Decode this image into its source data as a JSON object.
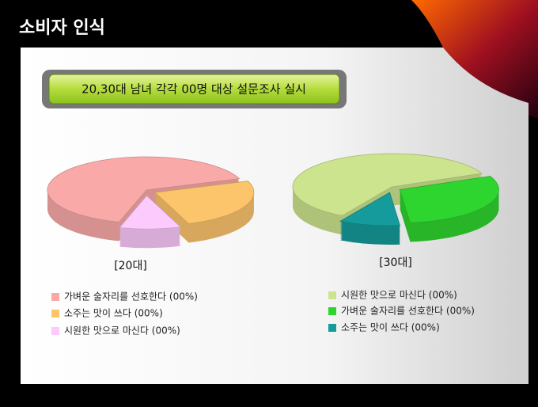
{
  "slide": {
    "title": "소비자 인식",
    "banner": "20,30대 남녀 각각 00명 대상 설문조사 실시"
  },
  "chart_data": [
    {
      "type": "pie",
      "title": "[20대]",
      "categories": [
        "가벼운 술자리를 선호한다 (00%)",
        "소주는 맛이 쓰다 (00%)",
        "시원한 맛으로 마신다 (00%)"
      ],
      "values": [
        65,
        25,
        10
      ],
      "colors": [
        "#f9aaa8",
        "#fcc56c",
        "#fccafc"
      ]
    },
    {
      "type": "pie",
      "title": "[30대]",
      "categories": [
        "시원한 맛으로 마신다 (00%)",
        "가벼운 술자리를 선호한다 (00%)",
        "소주는 맛이 쓰다 (00%)"
      ],
      "values": [
        60,
        30,
        10
      ],
      "colors": [
        "#cde48e",
        "#2fd52f",
        "#159b9b"
      ]
    }
  ]
}
